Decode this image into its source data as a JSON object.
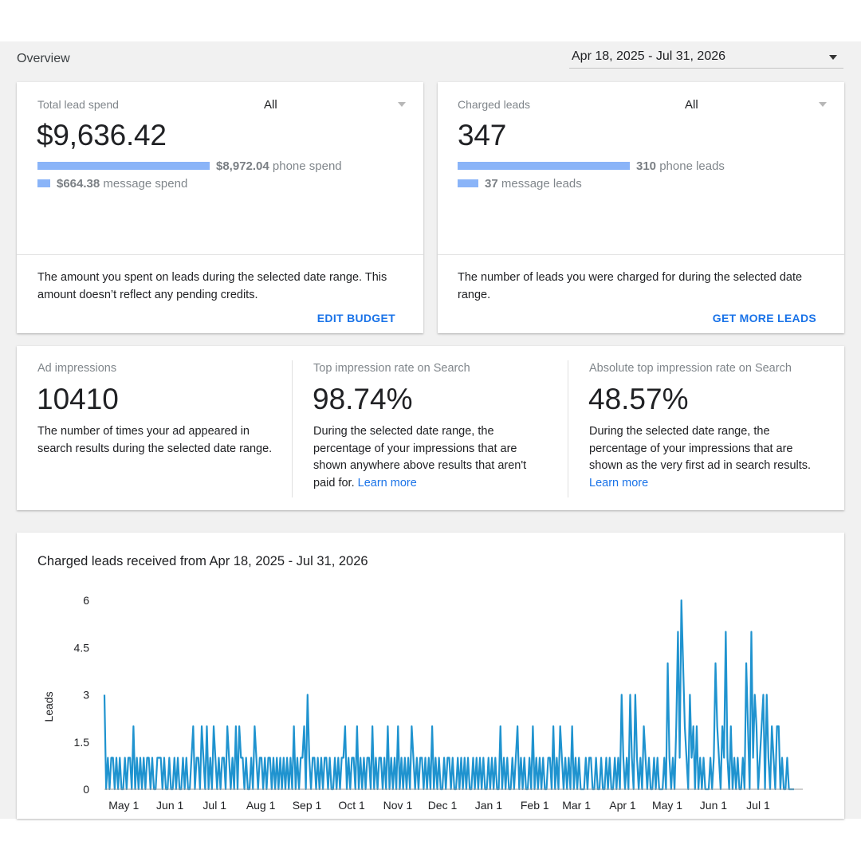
{
  "header": {
    "title": "Overview",
    "date_range": "Apr 18, 2025 - Jul 31, 2026"
  },
  "spend_card": {
    "label": "Total lead spend",
    "filter": "All",
    "total": "$9,636.42",
    "phone_amount": "$8,972.04",
    "phone_suffix": " phone spend",
    "message_amount": "$664.38",
    "message_suffix": " message spend",
    "description": "The amount you spent on leads during the selected date range. This amount doesn’t reflect any pending credits.",
    "action": "EDIT BUDGET"
  },
  "leads_card": {
    "label": "Charged leads",
    "filter": "All",
    "total": "347",
    "phone_amount": "310",
    "phone_suffix": " phone leads",
    "message_amount": "37",
    "message_suffix": " message leads",
    "description": "The number of leads you were charged for during the selected date range.",
    "action": "GET MORE LEADS"
  },
  "metrics": {
    "impressions": {
      "label": "Ad impressions",
      "value": "10410",
      "description": "The number of times your ad appeared in search results during the selected date range."
    },
    "top_rate": {
      "label": "Top impression rate on Search",
      "value": "98.74%",
      "description": "During the selected date range, the percentage of your impressions that are shown anywhere above results that aren't paid for.",
      "link": "Learn more"
    },
    "abs_top_rate": {
      "label": "Absolute top impression rate on Search",
      "value": "48.57%",
      "description": "During the selected date range, the percentage of your impressions that are shown as the very first ad in search results.",
      "link": "Learn more"
    }
  },
  "colors": {
    "accent": "#1a73e8",
    "bar": "#8ab4f8",
    "series": "#1f93cf"
  },
  "chart_data": {
    "type": "line",
    "title": "Charged leads received from Apr 18, 2025 - Jul 31, 2026",
    "ylabel": "Leads",
    "xlabel": "",
    "ylim": [
      0,
      6
    ],
    "yticks": [
      "0",
      "1.5",
      "3",
      "4.5",
      "6"
    ],
    "xticks": [
      "May 1",
      "Jun 1",
      "Jul 1",
      "Aug 1",
      "Sep 1",
      "Oct 1",
      "Nov 1",
      "Dec 1",
      "Jan 1",
      "Feb 1",
      "Mar 1",
      "Apr 1",
      "May 1",
      "Jun 1",
      "Jul 1"
    ],
    "x_start": "2025-04-18",
    "x_end": "2026-07-31",
    "series": [
      {
        "values": [
          3,
          0,
          1,
          0,
          1,
          1,
          0,
          1,
          0,
          1,
          0,
          0,
          1,
          0,
          1,
          1,
          0,
          2,
          0,
          1,
          0,
          1,
          0,
          1,
          0,
          1,
          1,
          0,
          1,
          0,
          0,
          1,
          1,
          1,
          0,
          1,
          0,
          0,
          1,
          0,
          0,
          1,
          0,
          1,
          0,
          0,
          1,
          0,
          1,
          0,
          0,
          1,
          2,
          0,
          1,
          1,
          0,
          2,
          1,
          0,
          2,
          0,
          1,
          0,
          2,
          1,
          0,
          1,
          0,
          1,
          1,
          0,
          2,
          1,
          0,
          1,
          0,
          2,
          0,
          2,
          1,
          1,
          0,
          1,
          0,
          0,
          1,
          0,
          2,
          1,
          0,
          1,
          1,
          0,
          1,
          0,
          1,
          1,
          0,
          1,
          0,
          1,
          0,
          1,
          0,
          1,
          0,
          1,
          0,
          1,
          0,
          2,
          0,
          1,
          0,
          1,
          1,
          2,
          0,
          3,
          1,
          0,
          1,
          1,
          0,
          1,
          0,
          1,
          0,
          1,
          1,
          0,
          1,
          0,
          0,
          1,
          0,
          1,
          0,
          1,
          1,
          2,
          0,
          1,
          0,
          1,
          1,
          0,
          2,
          0,
          1,
          0,
          1,
          0,
          1,
          1,
          0,
          2,
          0,
          1,
          0,
          1,
          1,
          0,
          1,
          0,
          2,
          0,
          1,
          0,
          1,
          0,
          2,
          0,
          1,
          0,
          1,
          0,
          1,
          0,
          2,
          1,
          0,
          1,
          0,
          1,
          1,
          0,
          1,
          0,
          1,
          0,
          2,
          0,
          1,
          0,
          1,
          0,
          0,
          1,
          0,
          1,
          1,
          0,
          1,
          0,
          0,
          1,
          0,
          1,
          0,
          1,
          0,
          1,
          0,
          0,
          1,
          0,
          1,
          0,
          1,
          0,
          1,
          0,
          0,
          1,
          0,
          1,
          0,
          1,
          0,
          0,
          2,
          0,
          1,
          0,
          1,
          0,
          0,
          1,
          0,
          1,
          2,
          0,
          1,
          0,
          1,
          0,
          0,
          1,
          0,
          2,
          0,
          1,
          0,
          1,
          0,
          1,
          0,
          0,
          1,
          1,
          0,
          2,
          0,
          1,
          0,
          2,
          1,
          0,
          1,
          0,
          1,
          0,
          2,
          0,
          1,
          0,
          1,
          0,
          0,
          0,
          1,
          0,
          1,
          1,
          0,
          0,
          1,
          0,
          0,
          1,
          0,
          0,
          1,
          0,
          1,
          0,
          0,
          1,
          0,
          1,
          0,
          3,
          1,
          0,
          1,
          0,
          3,
          1,
          0,
          3,
          1,
          0,
          1,
          0,
          2,
          1,
          0,
          1,
          0,
          0,
          1,
          0,
          1,
          0,
          0,
          0,
          1,
          0,
          4,
          1,
          0,
          1,
          0,
          2,
          5,
          1,
          6,
          4,
          2,
          1,
          0,
          3,
          1,
          2,
          0,
          2,
          0,
          1,
          0,
          1,
          0,
          0,
          0,
          1,
          0,
          1,
          4,
          2,
          1,
          0,
          2,
          1,
          5,
          1,
          0,
          2,
          0,
          1,
          0,
          1,
          0,
          0,
          1,
          0,
          4,
          2,
          0,
          5,
          1,
          3,
          2,
          0,
          1,
          2,
          3,
          0,
          3,
          1,
          0,
          2,
          1,
          0,
          2,
          2,
          0,
          1,
          0,
          0,
          1,
          0,
          0,
          0,
          0
        ]
      }
    ]
  }
}
